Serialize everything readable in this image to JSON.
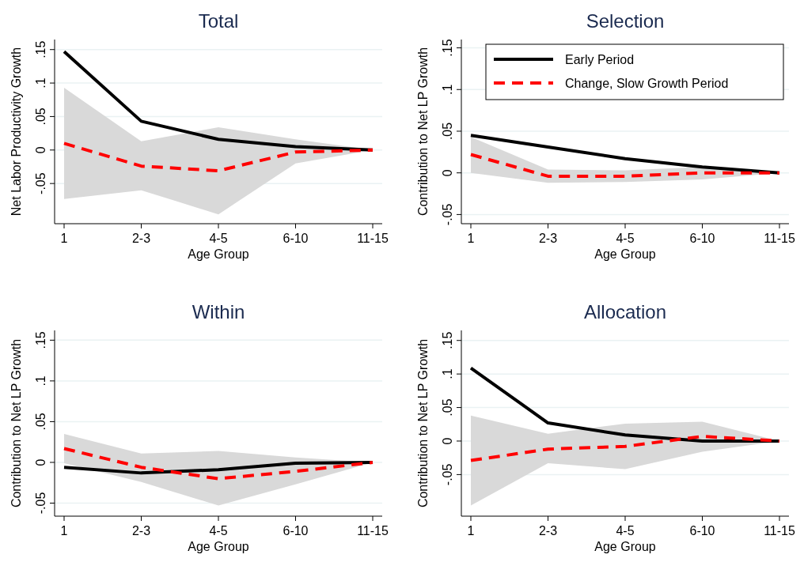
{
  "chart_data": [
    {
      "type": "line",
      "title": "Total",
      "xlabel": "Age Group",
      "ylabel": "Net Labor Productivity Growth",
      "categories": [
        "1",
        "2-3",
        "4-5",
        "6-10",
        "11-15"
      ],
      "ylim": [
        -0.11,
        0.165
      ],
      "yticks": [
        {
          "value": -0.05,
          "label": "-.05"
        },
        {
          "value": 0,
          "label": "0"
        },
        {
          "value": 0.05,
          "label": ".05"
        },
        {
          "value": 0.1,
          "label": ".1"
        },
        {
          "value": 0.15,
          "label": ".15"
        }
      ],
      "grid": "y",
      "legend": false,
      "series": [
        {
          "color": "#000000",
          "line_style": "solid",
          "values": [
            0.147,
            0.043,
            0.016,
            0.005,
            0
          ]
        },
        {
          "color": "#ff0000",
          "line_style": "dashed",
          "values": [
            0.01,
            -0.024,
            -0.031,
            -0.003,
            0
          ],
          "lower": [
            -0.073,
            -0.06,
            -0.096,
            -0.02,
            0
          ],
          "upper": [
            0.093,
            0.013,
            0.034,
            0.016,
            0
          ]
        }
      ]
    },
    {
      "type": "line",
      "title": "Selection",
      "xlabel": "Age Group",
      "ylabel": "Contribution to Net LP Growth",
      "categories": [
        "1",
        "2-3",
        "4-5",
        "6-10",
        "11-15"
      ],
      "ylim": [
        -0.061,
        0.16
      ],
      "yticks": [
        {
          "value": -0.05,
          "label": "-.05"
        },
        {
          "value": 0,
          "label": "0"
        },
        {
          "value": 0.05,
          "label": ".05"
        },
        {
          "value": 0.1,
          "label": ".1"
        },
        {
          "value": 0.15,
          "label": ".15"
        }
      ],
      "grid": "y",
      "legend": "top right",
      "series": [
        {
          "name": "Early Period",
          "color": "#000000",
          "line_style": "solid",
          "values": [
            0.045,
            0.031,
            0.017,
            0.007,
            0
          ]
        },
        {
          "name": "Change, Slow Growth Period",
          "color": "#ff0000",
          "line_style": "dashed",
          "values": [
            0.022,
            -0.004,
            -0.004,
            0,
            0
          ],
          "lower": [
            0,
            -0.012,
            -0.011,
            -0.008,
            0
          ],
          "upper": [
            0.043,
            0.004,
            0.003,
            0.007,
            0
          ]
        }
      ]
    },
    {
      "type": "line",
      "title": "Within",
      "xlabel": "Age Group",
      "ylabel": "Contribution to Net LP Growth",
      "categories": [
        "1",
        "2-3",
        "4-5",
        "6-10",
        "11-15"
      ],
      "ylim": [
        -0.066,
        0.162
      ],
      "yticks": [
        {
          "value": -0.05,
          "label": "-.05"
        },
        {
          "value": 0,
          "label": "0"
        },
        {
          "value": 0.05,
          "label": ".05"
        },
        {
          "value": 0.1,
          "label": ".1"
        },
        {
          "value": 0.15,
          "label": ".15"
        }
      ],
      "grid": "y",
      "legend": false,
      "series": [
        {
          "color": "#000000",
          "line_style": "solid",
          "values": [
            -0.006,
            -0.013,
            -0.009,
            -0.001,
            0
          ]
        },
        {
          "color": "#ff0000",
          "line_style": "dashed",
          "values": [
            0.017,
            -0.006,
            -0.02,
            -0.011,
            0
          ],
          "lower": [
            -0.001,
            -0.024,
            -0.053,
            -0.027,
            0
          ],
          "upper": [
            0.035,
            0.011,
            0.014,
            0.006,
            0
          ]
        }
      ]
    },
    {
      "type": "line",
      "title": "Allocation",
      "xlabel": "Age Group",
      "ylabel": "Contribution to Net LP Growth",
      "categories": [
        "1",
        "2-3",
        "4-5",
        "6-10",
        "11-15"
      ],
      "ylim": [
        -0.112,
        0.165
      ],
      "yticks": [
        {
          "value": -0.05,
          "label": "-.05"
        },
        {
          "value": 0,
          "label": "0"
        },
        {
          "value": 0.05,
          "label": ".05"
        },
        {
          "value": 0.1,
          "label": ".1"
        },
        {
          "value": 0.15,
          "label": ".15"
        }
      ],
      "grid": "y",
      "legend": false,
      "series": [
        {
          "color": "#000000",
          "line_style": "solid",
          "values": [
            0.109,
            0.027,
            0.009,
            0,
            0
          ]
        },
        {
          "color": "#ff0000",
          "line_style": "dashed",
          "values": [
            -0.029,
            -0.012,
            -0.008,
            0.007,
            0
          ],
          "lower": [
            -0.096,
            -0.033,
            -0.042,
            -0.016,
            0
          ],
          "upper": [
            0.038,
            0.011,
            0.026,
            0.029,
            0
          ]
        }
      ]
    }
  ]
}
